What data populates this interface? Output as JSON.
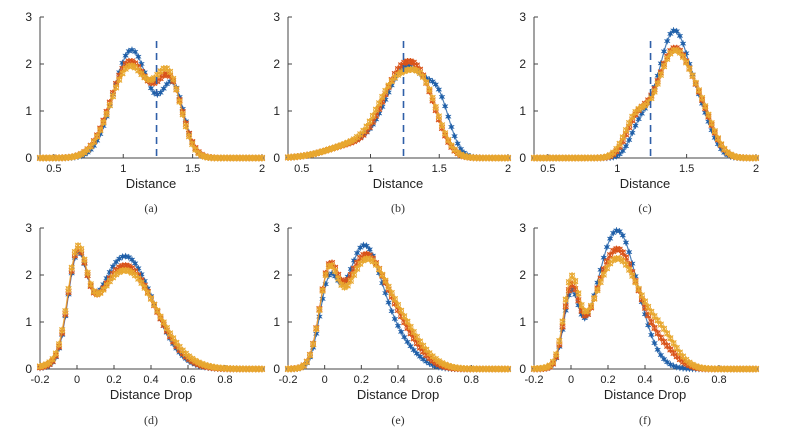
{
  "chart_data": [
    {
      "type": "scatter",
      "panel": "a",
      "caption": "(a)",
      "xlabel": "Distance",
      "xlim": [
        0.4,
        2
      ],
      "ylim": [
        0,
        3
      ],
      "xticks": [
        "0.5",
        "1",
        "1.5",
        "2"
      ],
      "yticks": [
        "0",
        "1",
        "2",
        "3"
      ],
      "vline": 1.24,
      "series": [
        {
          "color": "#1f5fa8",
          "components": [
            [
              2.3,
              1.06,
              0.13
            ],
            [
              1.45,
              1.36,
              0.08
            ]
          ]
        },
        {
          "color": "#d95319",
          "components": [
            [
              2.05,
              1.05,
              0.14
            ],
            [
              1.5,
              1.34,
              0.09
            ]
          ]
        },
        {
          "color": "#e8a830",
          "components": [
            [
              1.95,
              1.05,
              0.14
            ],
            [
              1.6,
              1.33,
              0.09
            ]
          ]
        }
      ]
    },
    {
      "type": "scatter",
      "panel": "b",
      "caption": "(b)",
      "xlabel": "Distance",
      "xlim": [
        0.4,
        2
      ],
      "ylim": [
        0,
        3
      ],
      "xticks": [
        "0.5",
        "1",
        "1.5",
        "2"
      ],
      "yticks": [
        "0",
        "1",
        "2",
        "3"
      ],
      "vline": 1.24,
      "series": [
        {
          "color": "#1f5fa8",
          "components": [
            [
              1.9,
              1.27,
              0.15
            ],
            [
              0.85,
              1.5,
              0.08
            ],
            [
              0.3,
              0.9,
              0.2
            ]
          ]
        },
        {
          "color": "#d95319",
          "components": [
            [
              1.55,
              1.21,
              0.13
            ],
            [
              1.1,
              1.39,
              0.11
            ],
            [
              0.3,
              0.9,
              0.2
            ]
          ]
        },
        {
          "color": "#e8a830",
          "components": [
            [
              1.4,
              1.18,
              0.13
            ],
            [
              1.3,
              1.39,
              0.11
            ],
            [
              0.3,
              0.9,
              0.2
            ]
          ]
        }
      ]
    },
    {
      "type": "scatter",
      "panel": "c",
      "caption": "(c)",
      "xlabel": "Distance",
      "xlim": [
        0.4,
        2
      ],
      "ylim": [
        0,
        3
      ],
      "xticks": [
        "0.5",
        "1",
        "1.5",
        "2"
      ],
      "yticks": [
        "0",
        "1",
        "2",
        "3"
      ],
      "vline": 1.24,
      "series": [
        {
          "color": "#1f5fa8",
          "components": [
            [
              2.7,
              1.41,
              0.12
            ],
            [
              0.55,
              1.16,
              0.07
            ],
            [
              0.5,
              1.62,
              0.08
            ]
          ]
        },
        {
          "color": "#d95319",
          "components": [
            [
              2.3,
              1.41,
              0.13
            ],
            [
              0.7,
              1.14,
              0.08
            ],
            [
              0.55,
              1.62,
              0.09
            ]
          ]
        },
        {
          "color": "#e8a830",
          "components": [
            [
              2.25,
              1.41,
              0.13
            ],
            [
              0.75,
              1.13,
              0.08
            ],
            [
              0.6,
              1.62,
              0.09
            ]
          ]
        }
      ]
    },
    {
      "type": "scatter",
      "panel": "d",
      "caption": "(d)",
      "xlabel": "Distance Drop",
      "xlim": [
        -0.2,
        1.0
      ],
      "ylim": [
        0,
        3
      ],
      "xticks": [
        "-0.2",
        "0",
        "0.2",
        "0.4",
        "0.6",
        "0.8"
      ],
      "yticks": [
        "0",
        "1",
        "2",
        "3"
      ],
      "vline": null,
      "series": [
        {
          "color": "#1f5fa8",
          "components": [
            [
              1.95,
              0.0,
              0.05
            ],
            [
              2.4,
              0.26,
              0.15
            ]
          ]
        },
        {
          "color": "#d95319",
          "components": [
            [
              1.95,
              0.0,
              0.05
            ],
            [
              2.2,
              0.26,
              0.16
            ]
          ]
        },
        {
          "color": "#e8a830",
          "components": [
            [
              1.95,
              0.0,
              0.05
            ],
            [
              2.1,
              0.26,
              0.17
            ]
          ]
        }
      ]
    },
    {
      "type": "scatter",
      "panel": "e",
      "caption": "(e)",
      "xlabel": "Distance Drop",
      "xlim": [
        -0.2,
        1.0
      ],
      "ylim": [
        0,
        3
      ],
      "xticks": [
        "-0.2",
        "0",
        "0.2",
        "0.4",
        "0.6",
        "0.8"
      ],
      "yticks": [
        "0",
        "1",
        "2",
        "3"
      ],
      "vline": null,
      "series": [
        {
          "color": "#1f5fa8",
          "components": [
            [
              1.55,
              0.02,
              0.05
            ],
            [
              2.55,
              0.21,
              0.1
            ],
            [
              0.5,
              0.4,
              0.1
            ]
          ]
        },
        {
          "color": "#d95319",
          "components": [
            [
              1.7,
              0.02,
              0.05
            ],
            [
              2.25,
              0.21,
              0.11
            ],
            [
              0.75,
              0.4,
              0.11
            ]
          ]
        },
        {
          "color": "#e8a830",
          "components": [
            [
              1.7,
              0.02,
              0.05
            ],
            [
              2.05,
              0.21,
              0.11
            ],
            [
              0.9,
              0.4,
              0.12
            ]
          ]
        }
      ]
    },
    {
      "type": "scatter",
      "panel": "f",
      "caption": "(f)",
      "xlabel": "Distance Drop",
      "xlim": [
        -0.2,
        1.0
      ],
      "ylim": [
        0,
        3
      ],
      "xticks": [
        "-0.2",
        "0",
        "0.2",
        "0.4",
        "0.6",
        "0.8"
      ],
      "yticks": [
        "0",
        "1",
        "2",
        "3"
      ],
      "vline": null,
      "series": [
        {
          "color": "#1f5fa8",
          "components": [
            [
              1.45,
              0.0,
              0.04
            ],
            [
              2.95,
              0.25,
              0.11
            ]
          ]
        },
        {
          "color": "#d95319",
          "components": [
            [
              1.5,
              0.0,
              0.04
            ],
            [
              2.55,
              0.25,
              0.12
            ],
            [
              0.3,
              0.5,
              0.08
            ]
          ]
        },
        {
          "color": "#e8a830",
          "components": [
            [
              1.6,
              0.0,
              0.04
            ],
            [
              2.35,
              0.25,
              0.13
            ],
            [
              0.5,
              0.5,
              0.08
            ]
          ]
        }
      ]
    }
  ]
}
